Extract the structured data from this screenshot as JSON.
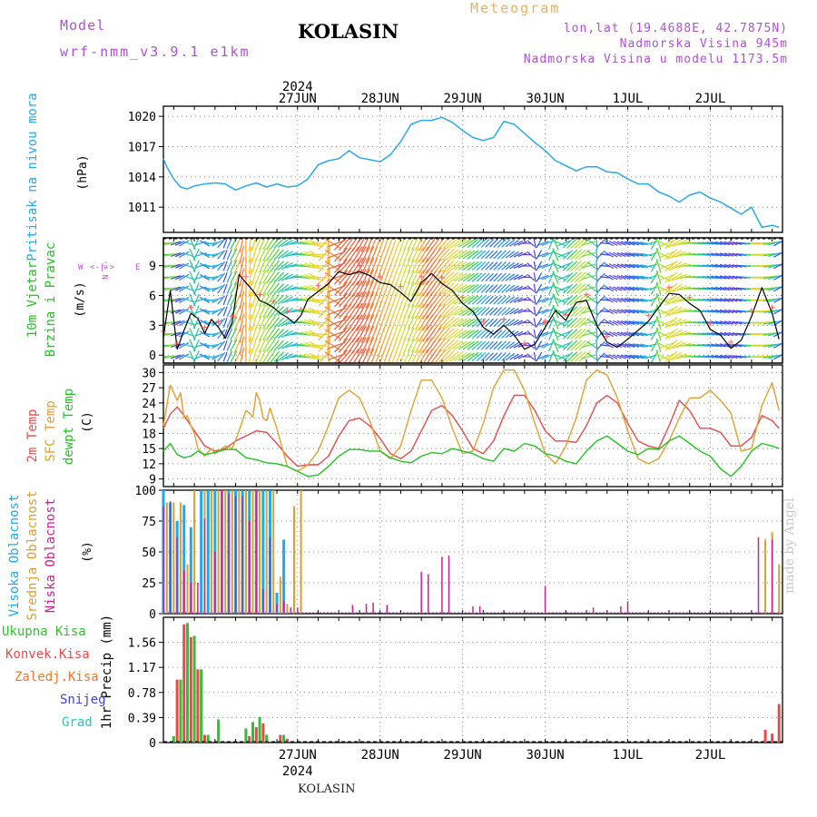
{
  "header": {
    "model_label": "Model",
    "model_name": "wrf-nmm_v3.9.1 e1km",
    "station": "KOLASIN",
    "product": "Meteogram",
    "lonlat": "lon,lat (19.4688E, 42.7875N)",
    "elevation": "Nadmorska Visina 945m",
    "model_elevation": "Nadmorska Visina u modelu 1173.5m",
    "watermark": "made by Angel",
    "footer_station": "KOLASIN"
  },
  "colors": {
    "pressure": "#2aa8e8",
    "temp2m": "#e84a4a",
    "sfc": "#e0a030",
    "dewpt": "#22c422",
    "high_cloud": "#1ea8f0",
    "mid_cloud": "#d8a030",
    "low_cloud": "#d02090",
    "total_precip": "#2ec22e",
    "conv_precip": "#e84a4a",
    "frz_precip": "#f07828",
    "snow": "#4040d8",
    "grad": "#20c8c8",
    "model": "#b050d8",
    "meteogram": "#e8b060",
    "grid": "#888888",
    "wind_compass": "#c050d0",
    "wind_sym": "#ff6060"
  },
  "time_axis": {
    "year": "2024",
    "days": [
      "27JUN",
      "28JUN",
      "29JUN",
      "30JUN",
      "1JUL",
      "2JUL"
    ]
  },
  "chart_data": [
    {
      "type": "line",
      "id": "pressure",
      "ylabel_name": "Pritisak na nivou mora",
      "ylabel_unit": "(hPa)",
      "ylim": [
        1008.5,
        1021
      ],
      "yticks": [
        1011,
        1014,
        1017,
        1020
      ],
      "x_unit": "hours from 00UTC 27JUN",
      "series": [
        {
          "key": "mslp",
          "x": [
            -15,
            -14,
            -12,
            -10,
            -8,
            -6,
            -3,
            0,
            3,
            6,
            9,
            12,
            15,
            18,
            21,
            24,
            27,
            30,
            33,
            36,
            39,
            42,
            45,
            48,
            51,
            54,
            57,
            60,
            63,
            66,
            69,
            72,
            75,
            78,
            81,
            84,
            87,
            90,
            93,
            96,
            99,
            102,
            105,
            108,
            111,
            114,
            117,
            120,
            123,
            126,
            129,
            132,
            135,
            138,
            141,
            144,
            147,
            150,
            153,
            156,
            159,
            162,
            164
          ],
          "values": [
            1015.8,
            1015,
            1013.8,
            1013,
            1012.8,
            1013.1,
            1013.3,
            1013.4,
            1013.3,
            1012.7,
            1013.1,
            1013.4,
            1013,
            1013.3,
            1013,
            1013.1,
            1013.8,
            1015.2,
            1015.6,
            1015.8,
            1016.6,
            1015.9,
            1015.7,
            1015.5,
            1016.2,
            1017.5,
            1019.2,
            1019.6,
            1019.6,
            1019.9,
            1019.4,
            1018.6,
            1017.9,
            1017.6,
            1017.9,
            1019.5,
            1019.2,
            1018.3,
            1017.4,
            1016.6,
            1015.6,
            1015.1,
            1014.6,
            1015,
            1015,
            1014.5,
            1014.4,
            1013.8,
            1013.3,
            1013.3,
            1012.5,
            1012.1,
            1011.5,
            1012.2,
            1012.5,
            1011.9,
            1011.5,
            1010.9,
            1010.3,
            1011,
            1009,
            1009.2,
            1009
          ]
        }
      ]
    },
    {
      "type": "line",
      "id": "wind",
      "ylabel_name": "10m Vjetar",
      "ylabel_name2": "Brzina i Pravac",
      "ylabel_unit": "(m/s)",
      "compass": "N",
      "compass_w": "W <-",
      "compass_e": "-> E",
      "compass_s": "S <-",
      "ylim": [
        -0.8,
        11.8
      ],
      "yticks": [
        0,
        3,
        6,
        9
      ],
      "series": [
        {
          "key": "wind_speed",
          "x": [
            -15,
            -13,
            -11,
            -9,
            -7,
            -5,
            -3,
            -1,
            1,
            3,
            5,
            7,
            9,
            11,
            13,
            15,
            17,
            19,
            21,
            23,
            25,
            27,
            30,
            33,
            36,
            39,
            42,
            45,
            48,
            51,
            54,
            57,
            60,
            63,
            66,
            69,
            72,
            75,
            78,
            81,
            84,
            87,
            90,
            93,
            96,
            99,
            102,
            105,
            108,
            111,
            114,
            117,
            120,
            123,
            126,
            129,
            132,
            135,
            138,
            141,
            144,
            147,
            150,
            153,
            156,
            159,
            162,
            164
          ],
          "values": [
            1.8,
            6.5,
            0.6,
            2.5,
            4.2,
            3.7,
            2.2,
            3.6,
            2.8,
            1.7,
            3.3,
            8.1,
            7.3,
            6.5,
            5.5,
            5.2,
            4.8,
            4.2,
            3.8,
            3.2,
            4,
            5.6,
            6.4,
            7.2,
            8.4,
            8.1,
            8.4,
            8,
            7.3,
            7.1,
            6.3,
            5.4,
            7.3,
            8.2,
            7.2,
            6.5,
            5.2,
            4.4,
            2.8,
            2.1,
            3,
            2,
            0.6,
            1.1,
            2.8,
            4.5,
            3.5,
            5.3,
            5.5,
            3,
            1.3,
            0.8,
            1.6,
            2.5,
            3.4,
            4.8,
            6.2,
            6.1,
            5.2,
            4.5,
            2.6,
            2,
            0.7,
            1.5,
            3.9,
            6.8,
            4.2,
            1.6
          ]
        },
        {
          "key": "wind_direction_deg",
          "x": [
            -15,
            -9,
            -3,
            0,
            3,
            6,
            9,
            12,
            15,
            18,
            21,
            24,
            30,
            36,
            42,
            48,
            54,
            60,
            66,
            72,
            78,
            84,
            90,
            96,
            102,
            108,
            114,
            120,
            126,
            132,
            138,
            144,
            150,
            156,
            162,
            164
          ],
          "values": [
            90,
            60,
            300,
            250,
            200,
            210,
            180,
            200,
            210,
            220,
            240,
            270,
            300,
            45,
            30,
            20,
            20,
            30,
            40,
            60,
            45,
            45,
            70,
            270,
            45,
            50,
            300,
            290,
            280,
            45,
            90,
            100,
            110,
            90,
            80,
            60
          ]
        }
      ]
    },
    {
      "type": "line",
      "id": "temperature",
      "ylabel_name": "2m Temp",
      "ylabel_name2": "SFC Temp",
      "ylabel_name3": "dewpt Temp",
      "ylabel_unit": "(C)",
      "ylim": [
        7.5,
        31.5
      ],
      "yticks": [
        9,
        12,
        15,
        18,
        21,
        24,
        27,
        30
      ],
      "series": [
        {
          "key": "t2m",
          "x": [
            -15,
            -13,
            -11,
            -9,
            -7,
            -5,
            -3,
            0,
            3,
            6,
            9,
            12,
            15,
            18,
            21,
            24,
            27,
            30,
            33,
            36,
            39,
            42,
            45,
            48,
            51,
            54,
            57,
            60,
            63,
            66,
            69,
            72,
            75,
            78,
            81,
            84,
            87,
            90,
            93,
            96,
            99,
            102,
            105,
            108,
            111,
            114,
            117,
            120,
            123,
            126,
            129,
            132,
            135,
            138,
            141,
            144,
            147,
            150,
            153,
            156,
            159,
            162,
            164
          ],
          "values": [
            19,
            21.8,
            23.2,
            21.5,
            19.5,
            17.5,
            15.5,
            14.5,
            15,
            16.5,
            17.5,
            18.5,
            18.2,
            16,
            13.5,
            11.5,
            11.8,
            11.8,
            13.5,
            17.5,
            20.5,
            21,
            19.5,
            17,
            14,
            13,
            14.5,
            18.5,
            22.5,
            23.5,
            21.5,
            18.5,
            15,
            14,
            16.5,
            21.5,
            25.5,
            25.5,
            22.5,
            18.5,
            16.5,
            16.5,
            16.2,
            19.5,
            24,
            25.5,
            24,
            20,
            16.5,
            15.5,
            15,
            19.5,
            24.5,
            22.5,
            19,
            19,
            18.2,
            15.5,
            15.5,
            17.2,
            21.5,
            20.5,
            19
          ]
        },
        {
          "key": "sfc",
          "x": [
            -15,
            -13,
            -11,
            -10,
            -9,
            -8,
            -7,
            -6,
            -5,
            -3,
            -1,
            0,
            1,
            3,
            5,
            7,
            9,
            10,
            11,
            12,
            13,
            14,
            15,
            16,
            18,
            21,
            24,
            27,
            30,
            33,
            36,
            39,
            42,
            45,
            48,
            51,
            54,
            57,
            60,
            63,
            66,
            69,
            72,
            75,
            78,
            81,
            84,
            87,
            90,
            93,
            96,
            99,
            102,
            105,
            108,
            111,
            114,
            117,
            120,
            123,
            126,
            129,
            132,
            135,
            138,
            141,
            144,
            147,
            150,
            153,
            156,
            159,
            162,
            164
          ],
          "values": [
            19.5,
            27.5,
            24.5,
            26,
            21,
            21.5,
            19.5,
            18,
            15,
            13.5,
            15,
            14,
            14.5,
            15.5,
            15,
            18.5,
            22.5,
            22,
            21.2,
            26,
            24.5,
            21,
            20.5,
            23,
            19,
            11.5,
            10.5,
            11.8,
            14.5,
            19.5,
            25,
            26.5,
            25,
            20.5,
            14.5,
            13,
            15.5,
            22.5,
            28.5,
            28.5,
            25,
            19,
            14,
            14.5,
            20,
            27,
            30.5,
            30.5,
            26.5,
            20,
            14,
            12,
            15.5,
            21,
            28.5,
            30.5,
            29.5,
            25,
            18.5,
            13,
            12,
            13,
            16.5,
            21,
            25,
            25,
            26.5,
            24.5,
            22,
            14.5,
            15,
            23.5,
            28,
            22.5
          ]
        },
        {
          "key": "dewpt",
          "x": [
            -15,
            -13,
            -11,
            -9,
            -7,
            -5,
            -3,
            0,
            3,
            6,
            9,
            12,
            15,
            18,
            21,
            24,
            27,
            30,
            33,
            36,
            39,
            42,
            45,
            48,
            51,
            54,
            57,
            60,
            63,
            66,
            69,
            72,
            75,
            78,
            81,
            84,
            87,
            90,
            93,
            96,
            99,
            102,
            105,
            108,
            111,
            114,
            117,
            120,
            123,
            126,
            129,
            132,
            135,
            138,
            141,
            144,
            147,
            150,
            153,
            156,
            159,
            162,
            164
          ],
          "values": [
            14.5,
            16,
            13.8,
            13.2,
            13.5,
            14.5,
            13.8,
            14.2,
            14.8,
            14.8,
            13.2,
            12.8,
            12.2,
            12,
            11.5,
            10.5,
            9.5,
            9.8,
            11.5,
            13.5,
            14.8,
            14.8,
            14.5,
            14.5,
            13.2,
            12.5,
            12.2,
            13.5,
            14.2,
            14,
            15,
            14.5,
            14,
            13,
            12.5,
            15,
            14.5,
            16,
            15.5,
            14,
            13.5,
            12.5,
            12,
            14.5,
            16.5,
            17.5,
            16,
            14.5,
            13.8,
            15,
            14.8,
            16.5,
            17.5,
            16,
            14.5,
            13.5,
            11,
            9.5,
            11.5,
            14.5,
            16,
            15.5,
            15
          ]
        }
      ]
    },
    {
      "type": "bar",
      "id": "cloud",
      "ylabel_name": "Visoka Oblacnost",
      "ylabel_name2": "Srednja Oblacnost",
      "ylabel_name3": "Niska Oblacnost",
      "ylabel_unit": "(%)",
      "ylim": [
        0,
        100
      ],
      "yticks": [
        0,
        25,
        50,
        75,
        100
      ],
      "series": [
        {
          "key": "high",
          "x": [
            -15,
            -13,
            -11,
            -9,
            -7,
            -4,
            -2,
            0,
            2,
            4,
            6,
            8,
            10,
            12,
            14,
            16,
            18,
            20
          ],
          "values": [
            100,
            90,
            75,
            88,
            70,
            100,
            100,
            100,
            100,
            100,
            100,
            100,
            100,
            100,
            100,
            100,
            17,
            60
          ]
        },
        {
          "key": "mid",
          "x": [
            -14,
            -12,
            -10,
            -8,
            -6,
            -3,
            -1,
            1,
            3,
            5,
            7,
            9,
            11,
            13,
            15,
            17,
            19,
            21,
            23,
            25,
            160,
            162,
            164
          ],
          "values": [
            90,
            90,
            90,
            40,
            100,
            100,
            100,
            100,
            100,
            100,
            100,
            100,
            100,
            100,
            100,
            100,
            30,
            8,
            87,
            100,
            60,
            66,
            40
          ]
        },
        {
          "key": "low",
          "x": [
            -15,
            -13,
            -11,
            -9,
            -7,
            -5,
            -3,
            0,
            2,
            4,
            6,
            8,
            10,
            12,
            14,
            16,
            18,
            20,
            22,
            24,
            40,
            44,
            46,
            50,
            60,
            62,
            66,
            68,
            75,
            77,
            96,
            110,
            118,
            120,
            158,
            162
          ],
          "values": [
            87,
            91,
            62,
            35,
            25,
            25,
            77,
            50,
            100,
            97,
            95,
            95,
            75,
            100,
            20,
            62,
            8,
            10,
            5,
            5,
            7,
            8,
            9,
            7,
            34,
            32,
            46,
            47,
            6,
            6,
            22,
            5,
            6,
            10,
            62,
            60
          ]
        }
      ]
    },
    {
      "type": "bar",
      "id": "precip",
      "ylabel_name": "1hr Precip",
      "ylabel_unit": "(mm)",
      "legend": [
        "Ukupna Kisa",
        "Konvek.Kisa",
        "Zaledj.Kisa",
        "Snijeg",
        "Grad"
      ],
      "ylim": [
        0,
        1.95
      ],
      "yticks": [
        0,
        0.39,
        0.78,
        1.17,
        1.56
      ],
      "series": [
        {
          "key": "total",
          "x": [
            -12,
            -10,
            -8,
            -6,
            -4,
            -2,
            1,
            9,
            11,
            13,
            15,
            20
          ],
          "values": [
            0.1,
            0.98,
            1.86,
            1.66,
            1.14,
            0.12,
            0.36,
            0.22,
            0.32,
            0.4,
            0.12,
            0.12
          ]
        },
        {
          "key": "conv",
          "x": [
            -11,
            -9,
            -7,
            -5,
            -3,
            10,
            12,
            14,
            19,
            21,
            160,
            162,
            164
          ],
          "values": [
            0.98,
            1.84,
            1.64,
            1.14,
            0.12,
            0.1,
            0.24,
            0.3,
            0.12,
            0.06,
            0.2,
            0.14,
            0.6
          ]
        }
      ]
    }
  ]
}
